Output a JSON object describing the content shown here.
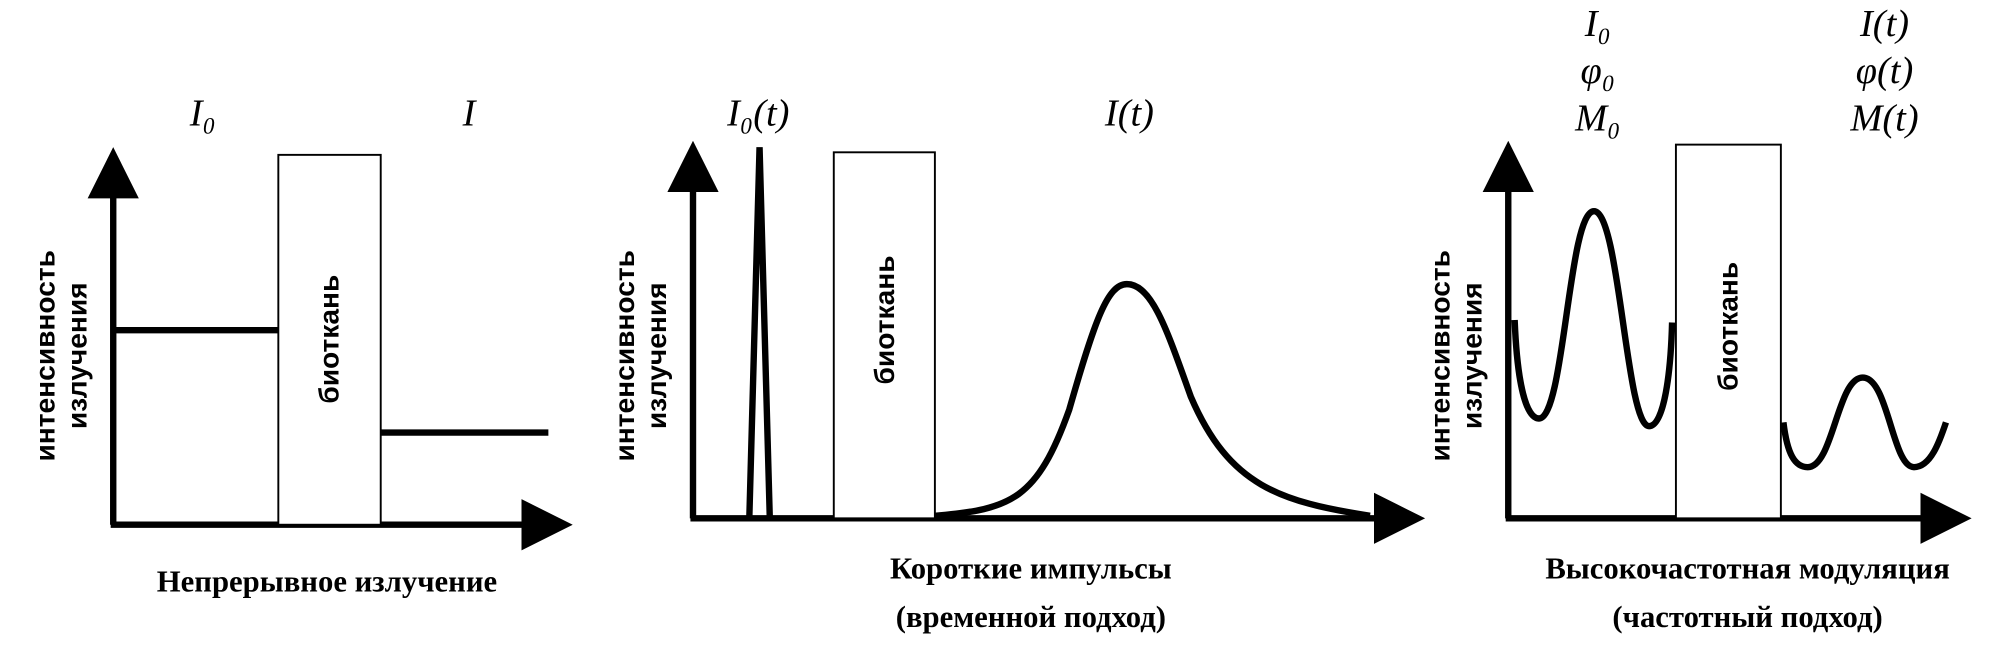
{
  "panels": [
    {
      "labels": [
        "I₀",
        "I"
      ],
      "y_axis_label": [
        "интенсивность",
        "излучения"
      ],
      "box_label": "биоткань",
      "caption": [
        "Непрерывное излучение"
      ]
    },
    {
      "labels": [
        "I₀(t)",
        "I(t)"
      ],
      "y_axis_label": [
        "интенсивность",
        "излучения"
      ],
      "box_label": "биоткань",
      "caption": [
        "Короткие импульсы",
        "(временной подход)"
      ]
    },
    {
      "labels_left": [
        "I₀",
        "φ₀",
        "M₀"
      ],
      "labels_right": [
        "I(t)",
        "φ(t)",
        "M(t)"
      ],
      "y_axis_label": [
        "интенсивность",
        "излучения"
      ],
      "box_label": "биоткань",
      "caption": [
        "Высокочастотная модуляция",
        "(частотный подход)"
      ]
    }
  ]
}
